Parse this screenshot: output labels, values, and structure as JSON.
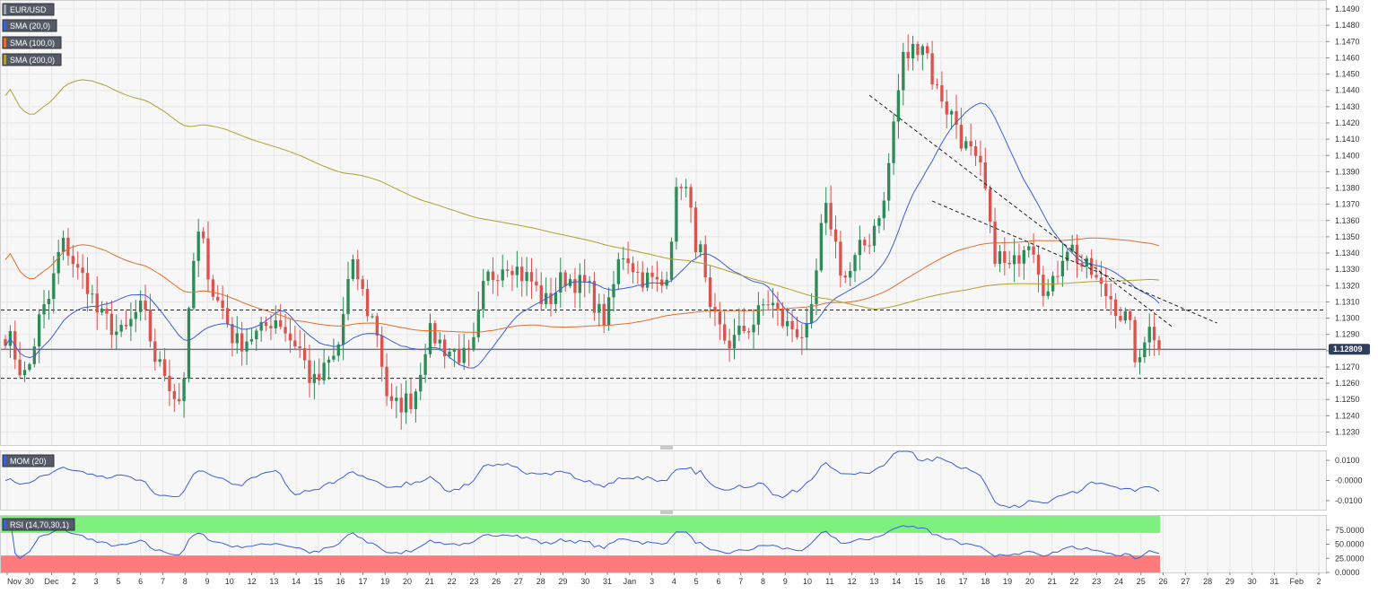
{
  "chart_data": [
    {
      "type": "candlestick",
      "symbol": "EUR/USD",
      "ylim": [
        1.1222,
        1.1495
      ],
      "yticks": [
        "1.1230",
        "1.1240",
        "1.1250",
        "1.1260",
        "1.1270",
        "1.1280",
        "1.1290",
        "1.1300",
        "1.1310",
        "1.1320",
        "1.1330",
        "1.1340",
        "1.1350",
        "1.1360",
        "1.1370",
        "1.1380",
        "1.1390",
        "1.1400",
        "1.1410",
        "1.1420",
        "1.1430",
        "1.1440",
        "1.1450",
        "1.1460",
        "1.1470",
        "1.1480",
        "1.1490"
      ],
      "xticks": [
        "Nov",
        "30",
        "Dec",
        "2",
        "3",
        "5",
        "6",
        "7",
        "8",
        "9",
        "10",
        "12",
        "13",
        "14",
        "15",
        "16",
        "17",
        "19",
        "20",
        "21",
        "22",
        "23",
        "26",
        "27",
        "28",
        "29",
        "30",
        "31",
        "Jan",
        "3",
        "4",
        "5",
        "6",
        "7",
        "8",
        "9",
        "10",
        "11",
        "12",
        "13",
        "14",
        "15",
        "16",
        "17",
        "18",
        "19",
        "20",
        "21",
        "22",
        "23",
        "24",
        "25",
        "26",
        "27",
        "28",
        "29",
        "30",
        "31",
        "Feb",
        "2"
      ],
      "last_price": "1.12809",
      "last_price_value": 1.12809,
      "horizontal_levels": [
        1.1305,
        1.1263
      ],
      "trendlines": [
        {
          "from": [
            1.1437,
            179
          ],
          "to": [
            1.1294,
            242
          ]
        },
        {
          "from": [
            1.1372,
            192
          ],
          "to": [
            1.1297,
            251
          ]
        }
      ],
      "indicators": [
        {
          "name": "SMA (20,0)",
          "color": "#3c5fd6"
        },
        {
          "name": "SMA (100,0)",
          "color": "#e06e2e"
        },
        {
          "name": "SMA (200,0)",
          "color": "#b0a030"
        }
      ],
      "up_color": "#2e8b57",
      "down_color": "#d9534f",
      "candle_count": 240
    },
    {
      "type": "line",
      "name": "MOM (20)",
      "color": "#3c5fd6",
      "ylim": [
        -0.0145,
        0.0145
      ],
      "yticks": [
        "0.0100",
        "-0.0000",
        "-0.0100"
      ]
    },
    {
      "type": "line",
      "name": "RSI (14,70,30,1)",
      "color": "#3c5fd6",
      "ylim": [
        0,
        100
      ],
      "yticks": [
        "75.0000",
        "50.0000",
        "25.0000",
        "0.0000"
      ],
      "overbought": 70,
      "oversold": 30,
      "overbought_color": "#7df07d",
      "oversold_color": "#ff7a7a"
    }
  ]
}
